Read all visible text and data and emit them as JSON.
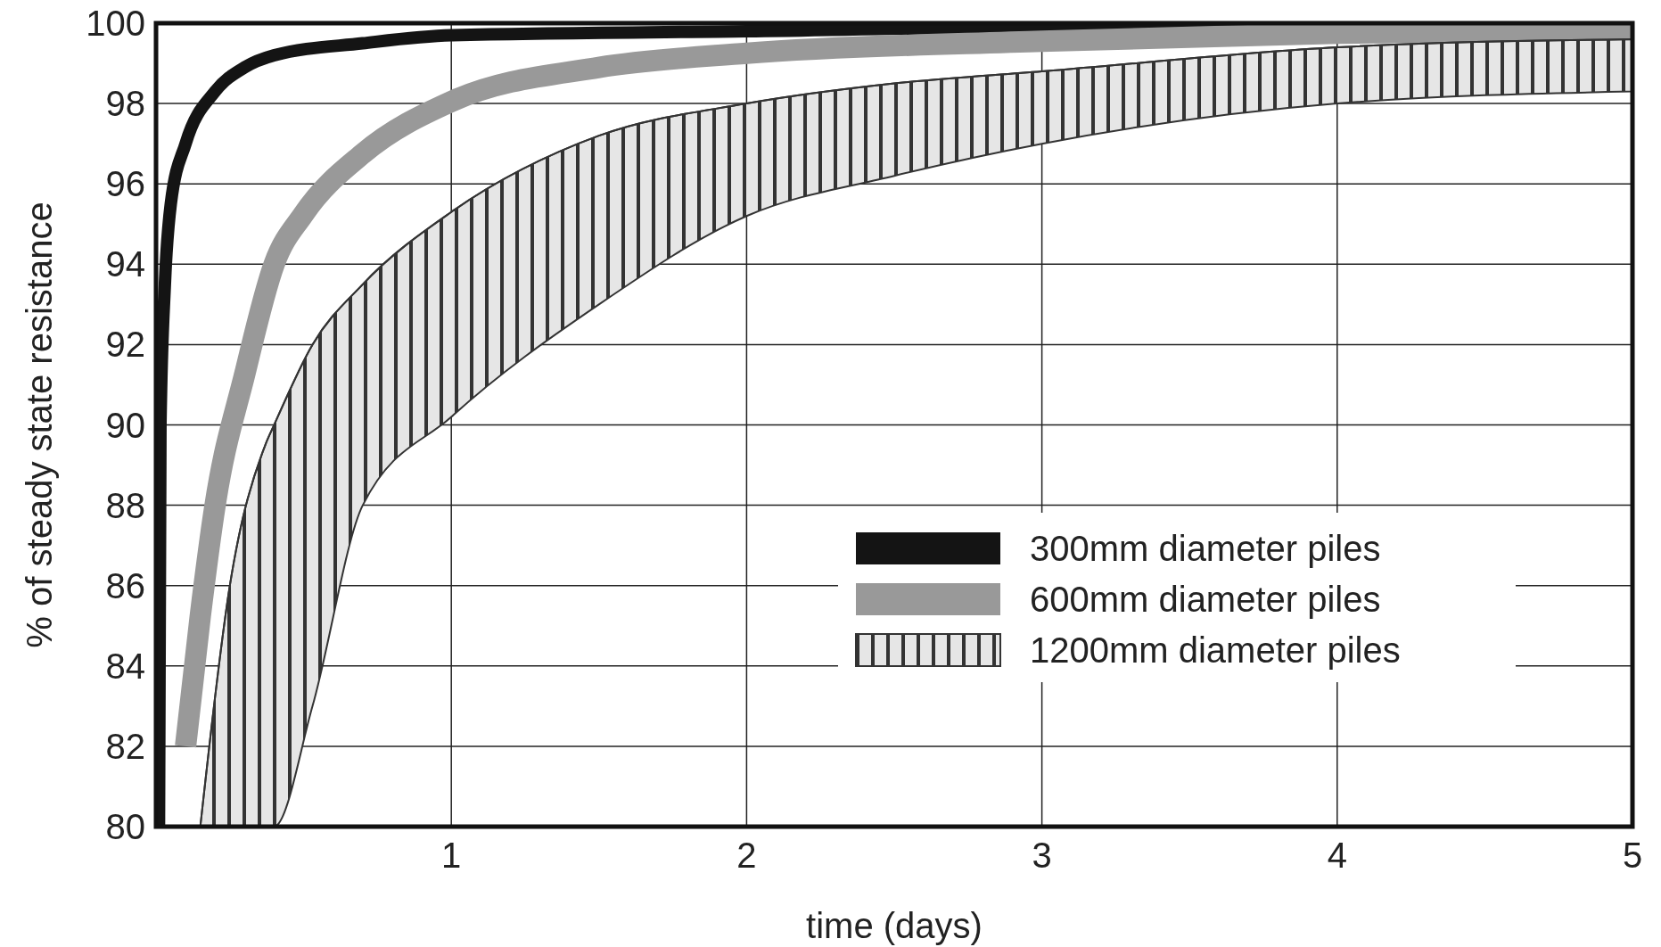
{
  "chart_data": {
    "type": "line",
    "xlabel": "time (days)",
    "ylabel": "% of steady state resistance",
    "xlim": [
      0,
      5
    ],
    "xticks": [
      1,
      2,
      3,
      4,
      5
    ],
    "ylim": [
      80,
      100
    ],
    "yticks": [
      80,
      82,
      84,
      86,
      88,
      90,
      92,
      94,
      96,
      98,
      100
    ],
    "grid": true,
    "legend": "right",
    "series": [
      {
        "name": "300mm diameter piles",
        "color": "#141414",
        "x": [
          0.01,
          0.015,
          0.03,
          0.05,
          0.1,
          0.2,
          0.3,
          0.4,
          0.7,
          1,
          2,
          3,
          5
        ],
        "values": [
          80,
          90,
          93.5,
          95.5,
          97,
          98.3,
          98.9,
          99.2,
          99.5,
          99.7,
          99.8,
          99.9,
          99.9
        ]
      },
      {
        "name": "600mm diameter piles",
        "color": "#999999",
        "x": [
          0.1,
          0.15,
          0.2,
          0.3,
          0.4,
          0.5,
          0.7,
          1,
          1.5,
          2,
          3,
          4,
          5
        ],
        "values": [
          82,
          85.25,
          88,
          91.25,
          94,
          95.25,
          96.75,
          98.05,
          98.9,
          99.25,
          99.55,
          99.75,
          99.85
        ]
      },
      {
        "name": "1200mm diameter piles",
        "color": "#333333",
        "x": [
          0.15,
          0.25,
          0.37,
          0.4,
          0.53,
          0.7,
          1,
          1.5,
          2,
          2.5,
          3,
          4,
          5
        ],
        "values": [
          80,
          86,
          89.5,
          90,
          92,
          93.5,
          95.3,
          97.2,
          98,
          98.5,
          98.8,
          99.4,
          99.6
        ],
        "lower": [
          80,
          80,
          80,
          80,
          83,
          88,
          90.2,
          93,
          95.2,
          96.2,
          97,
          98,
          98.3
        ],
        "upper": [
          80,
          86,
          89.5,
          90,
          92,
          93.5,
          95.3,
          97.2,
          98,
          98.5,
          98.8,
          99.4,
          99.6
        ]
      }
    ]
  }
}
